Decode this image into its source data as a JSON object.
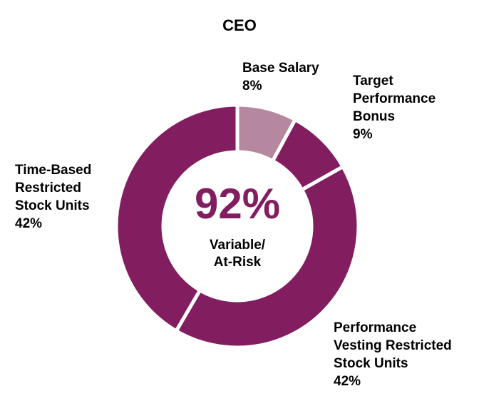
{
  "chart_data": {
    "type": "pie",
    "style": "donut",
    "title": "CEO",
    "center_value": "92%",
    "center_text": [
      "Variable/",
      "At-Risk"
    ],
    "slices": [
      {
        "label": [
          "Base Salary"
        ],
        "value": 8,
        "value_label": "8%",
        "color": "#B5889F"
      },
      {
        "label": [
          "Target",
          "Performance",
          "Bonus"
        ],
        "value": 9,
        "value_label": "9%",
        "color": "#821E5F"
      },
      {
        "label": [
          "Performance",
          "Vesting Restricted",
          "Stock Units"
        ],
        "value": 42,
        "value_label": "42%",
        "color": "#821E5F"
      },
      {
        "label": [
          "Time-Based",
          "Restricted",
          "Stock Units"
        ],
        "value": 42,
        "value_label": "42%",
        "color": "#821E5F"
      }
    ],
    "center_color": "#821E5F",
    "separator_color": "#FFFFFF"
  }
}
